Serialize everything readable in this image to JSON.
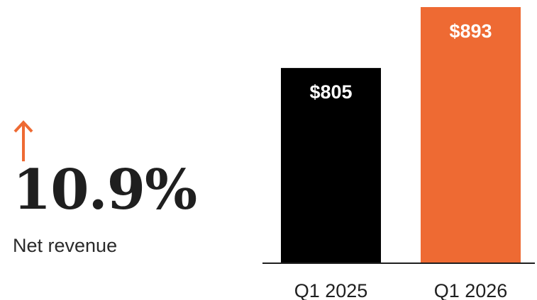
{
  "kpi": {
    "change_value": "10.9%",
    "metric_label": "Net revenue",
    "arrow_icon": "up-arrow-icon"
  },
  "colors": {
    "accent": "#EE6A33",
    "baseline_bar": "#000000",
    "text": "#1F1F1F"
  },
  "chart_data": {
    "type": "bar",
    "categories": [
      "Q1 2025",
      "Q1 2026"
    ],
    "values": [
      805,
      893
    ],
    "value_labels": [
      "$805",
      "$893"
    ],
    "bar_colors": [
      "#000000",
      "#EE6A33"
    ],
    "title": "",
    "xlabel": "",
    "ylabel": "",
    "ylim": [
      523,
      893
    ],
    "grid": false
  }
}
